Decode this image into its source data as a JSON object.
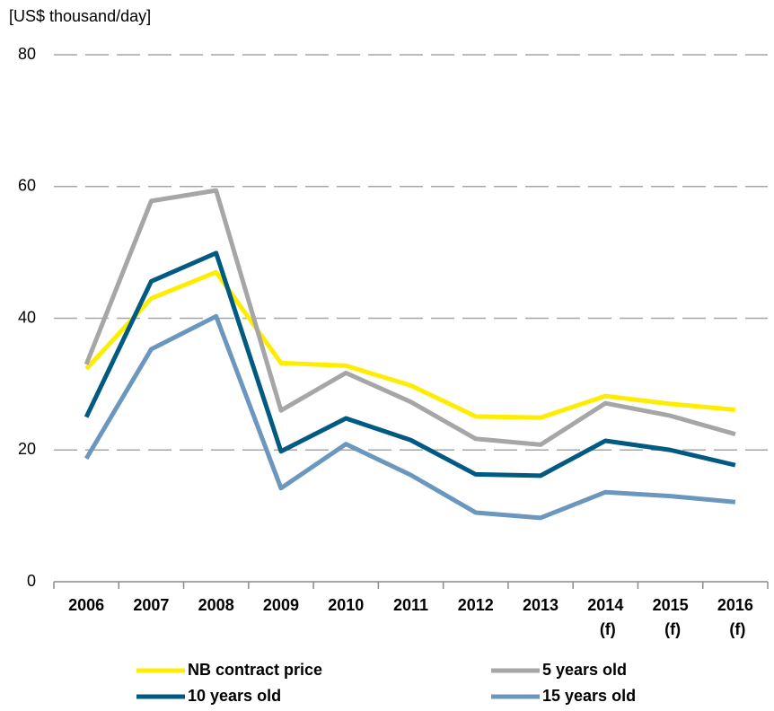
{
  "chart_data": {
    "type": "line",
    "ylabel": "[US$ thousand/day]",
    "categories": [
      "2006",
      "2007",
      "2008",
      "2009",
      "2010",
      "2011",
      "2012",
      "2013",
      "2014 (f)",
      "2015 (f)",
      "2016 (f)"
    ],
    "series": [
      {
        "name": "NB contract price",
        "color": "#ffed00",
        "values": [
          32.3,
          43,
          47,
          33.2,
          32.8,
          29.8,
          25.1,
          24.9,
          28.2,
          27,
          26.1
        ]
      },
      {
        "name": "5 years old",
        "color": "#a6a6a6",
        "values": [
          33,
          57.8,
          59.4,
          26,
          31.7,
          27.3,
          21.7,
          20.8,
          27.1,
          25.2,
          22.4
        ]
      },
      {
        "name": "10 years old",
        "color": "#005a82",
        "values": [
          25,
          45.6,
          49.9,
          19.8,
          24.8,
          21.5,
          16.3,
          16.1,
          21.4,
          20,
          17.7
        ]
      },
      {
        "name": "15 years old",
        "color": "#6b97bf",
        "values": [
          18.7,
          35.3,
          40.3,
          14.2,
          20.9,
          16.2,
          10.5,
          9.7,
          13.6,
          13,
          12.1
        ]
      }
    ],
    "ylim": [
      0,
      80
    ],
    "yticks": [
      0,
      20,
      40,
      60,
      80
    ],
    "grid": true,
    "legend": "bottom"
  }
}
